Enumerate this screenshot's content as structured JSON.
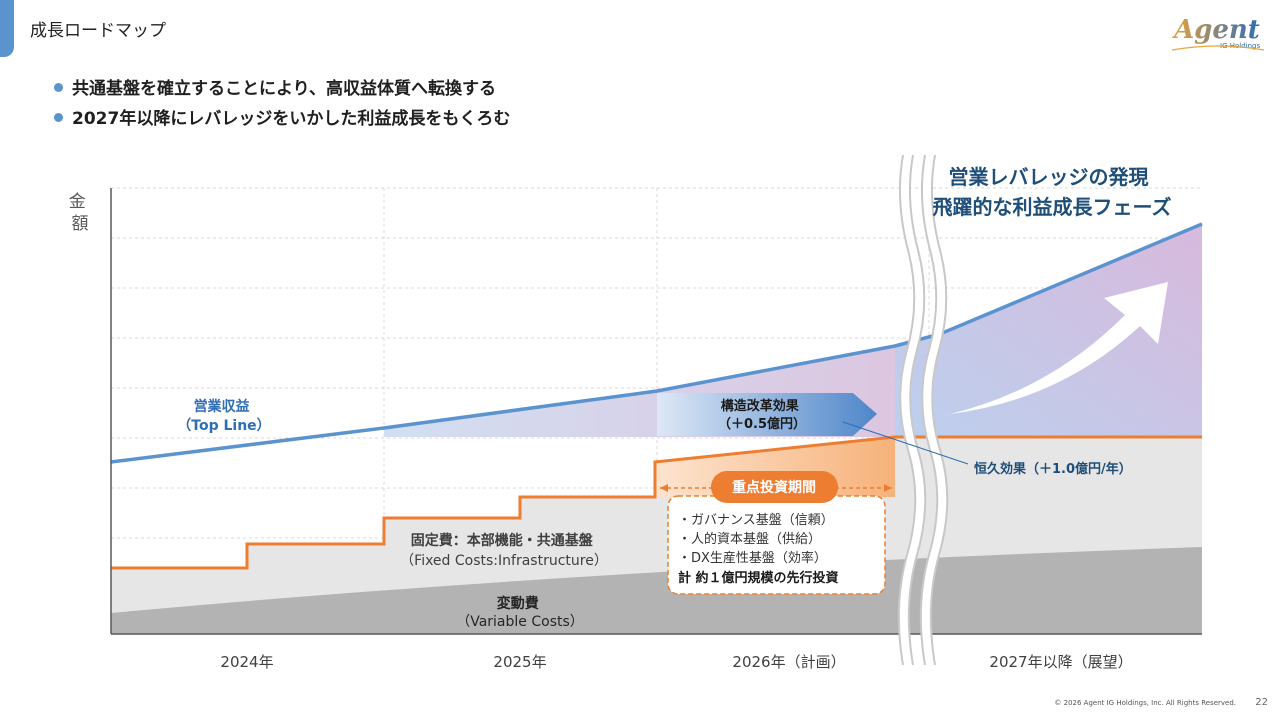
{
  "header": {
    "title": "成長ロードマップ"
  },
  "logo": {
    "brand": "Agent",
    "sub": "IG Holdings"
  },
  "bullets": [
    "共通基盤を確立することにより、高収益体質へ転換する",
    "2027年以降にレバレッジをいかした利益成長をもくろむ"
  ],
  "diagram": {
    "y_axis_label": [
      "金",
      "額"
    ],
    "phase_title": [
      "営業レバレッジの発現",
      "飛躍的な利益成長フェーズ"
    ],
    "top_line": [
      "営業収益",
      "（Top Line）"
    ],
    "structural_effect": [
      "構造改革効果",
      "（＋0.5億円）"
    ],
    "permanent_effect": "恒久効果（＋1.0億円/年）",
    "focus_period": "重点投資期間",
    "investments": [
      "・ガバナンス基盤（信頼）",
      "・人的資本基盤（供給）",
      "・DX生産性基盤（効率）"
    ],
    "investment_total": "計 約１億円規模の先行投資",
    "fixed_costs": [
      "固定費：本部機能・共通基盤",
      "（Fixed Costs:Infrastructure）"
    ],
    "variable_costs": [
      "変動費",
      "（Variable Costs）"
    ],
    "periods": [
      "2024年",
      "2025年",
      "2026年（計画）",
      "2027年以降（展望）"
    ],
    "colors": {
      "revenue": "#5b93cf",
      "fixed": "#ed7d31",
      "variable": "#bfbfbf",
      "phase_title": "#1f4e79"
    }
  },
  "footer": {
    "copyright": "© 2026 Agent IG Holdings, Inc. All Rights Reserved.",
    "page_number": "22"
  }
}
